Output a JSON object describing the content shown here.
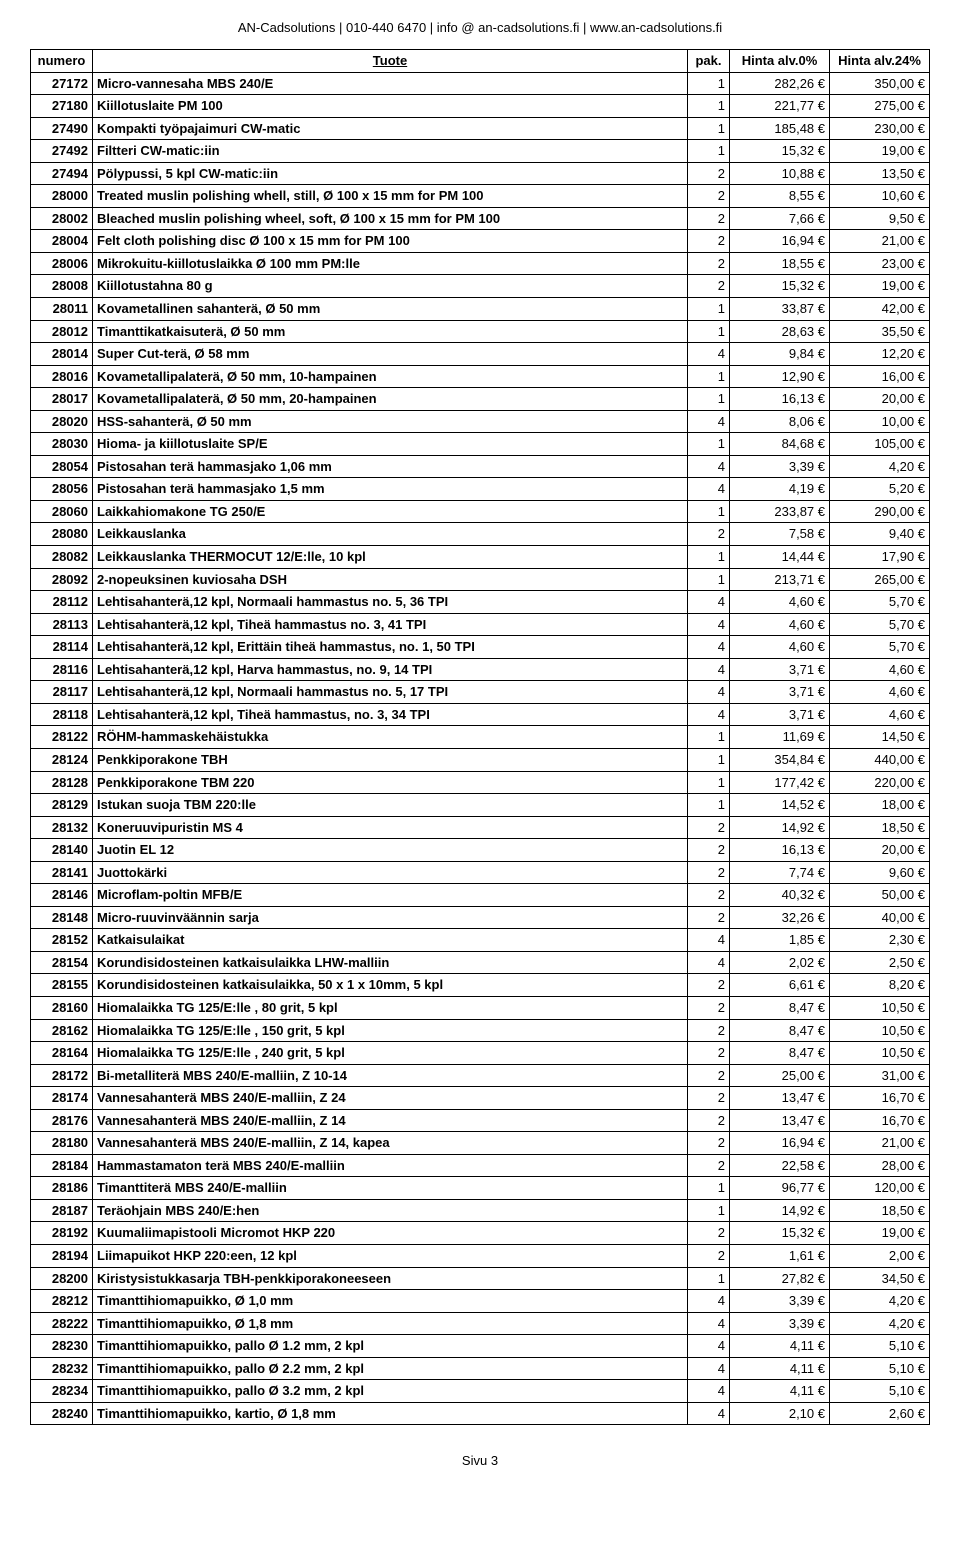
{
  "header": "AN-Cadsolutions | 010-440 6470 | info @ an-cadsolutions.fi | www.an-cadsolutions.fi",
  "footer": "Sivu 3",
  "table": {
    "columns": {
      "numero": "numero",
      "tuote": "Tuote",
      "pak": "pak.",
      "p0": "Hinta alv.0%",
      "p24": "Hinta alv.24%"
    },
    "rows": [
      {
        "n": "27172",
        "t": "Micro-vannesaha MBS 240/E",
        "p": "1",
        "a": "282,26 €",
        "b": "350,00 €"
      },
      {
        "n": "27180",
        "t": "Kiillotuslaite PM 100",
        "p": "1",
        "a": "221,77 €",
        "b": "275,00 €"
      },
      {
        "n": "27490",
        "t": "Kompakti työpajaimuri CW-matic",
        "p": "1",
        "a": "185,48 €",
        "b": "230,00 €"
      },
      {
        "n": "27492",
        "t": "Filtteri CW-matic:iin",
        "p": "1",
        "a": "15,32 €",
        "b": "19,00 €"
      },
      {
        "n": "27494",
        "t": "Pölypussi, 5 kpl CW-matic:iin",
        "p": "2",
        "a": "10,88 €",
        "b": "13,50 €"
      },
      {
        "n": "28000",
        "t": "Treated muslin polishing whell, still, Ø 100 x 15 mm for PM 100",
        "p": "2",
        "a": "8,55 €",
        "b": "10,60 €"
      },
      {
        "n": "28002",
        "t": "Bleached muslin polishing wheel, soft, Ø 100 x 15 mm for PM 100",
        "p": "2",
        "a": "7,66 €",
        "b": "9,50 €"
      },
      {
        "n": "28004",
        "t": "Felt cloth polishing disc Ø 100 x 15 mm for PM 100",
        "p": "2",
        "a": "16,94 €",
        "b": "21,00 €"
      },
      {
        "n": "28006",
        "t": "Mikrokuitu-kiillotuslaikka Ø 100 mm PM:lle",
        "p": "2",
        "a": "18,55 €",
        "b": "23,00 €"
      },
      {
        "n": "28008",
        "t": "Kiillotustahna 80 g",
        "p": "2",
        "a": "15,32 €",
        "b": "19,00 €"
      },
      {
        "n": "28011",
        "t": "Kovametallinen sahanterä, Ø 50 mm",
        "p": "1",
        "a": "33,87 €",
        "b": "42,00 €"
      },
      {
        "n": "28012",
        "t": "Timanttikatkaisuterä, Ø 50 mm",
        "p": "1",
        "a": "28,63 €",
        "b": "35,50 €"
      },
      {
        "n": "28014",
        "t": "Super Cut-terä, Ø 58 mm",
        "p": "4",
        "a": "9,84 €",
        "b": "12,20 €"
      },
      {
        "n": "28016",
        "t": "Kovametallipalaterä, Ø 50 mm, 10-hampainen",
        "p": "1",
        "a": "12,90 €",
        "b": "16,00 €"
      },
      {
        "n": "28017",
        "t": "Kovametallipalaterä, Ø 50 mm, 20-hampainen",
        "p": "1",
        "a": "16,13 €",
        "b": "20,00 €"
      },
      {
        "n": "28020",
        "t": "HSS-sahanterä, Ø 50 mm",
        "p": "4",
        "a": "8,06 €",
        "b": "10,00 €"
      },
      {
        "n": "28030",
        "t": "Hioma- ja kiillotuslaite SP/E",
        "p": "1",
        "a": "84,68 €",
        "b": "105,00 €"
      },
      {
        "n": "28054",
        "t": "Pistosahan terä hammasjako 1,06 mm",
        "p": "4",
        "a": "3,39 €",
        "b": "4,20 €"
      },
      {
        "n": "28056",
        "t": "Pistosahan terä hammasjako 1,5 mm",
        "p": "4",
        "a": "4,19 €",
        "b": "5,20 €"
      },
      {
        "n": "28060",
        "t": "Laikkahiomakone TG 250/E",
        "p": "1",
        "a": "233,87 €",
        "b": "290,00 €"
      },
      {
        "n": "28080",
        "t": "Leikkauslanka",
        "p": "2",
        "a": "7,58 €",
        "b": "9,40 €"
      },
      {
        "n": "28082",
        "t": "Leikkauslanka THERMOCUT 12/E:lle, 10 kpl",
        "p": "1",
        "a": "14,44 €",
        "b": "17,90 €"
      },
      {
        "n": "28092",
        "t": "2-nopeuksinen kuviosaha DSH",
        "p": "1",
        "a": "213,71 €",
        "b": "265,00 €"
      },
      {
        "n": "28112",
        "t": "Lehtisahanterä,12 kpl, Normaali hammastus no. 5, 36 TPI",
        "p": "4",
        "a": "4,60 €",
        "b": "5,70 €"
      },
      {
        "n": "28113",
        "t": "Lehtisahanterä,12 kpl, Tiheä hammastus no. 3, 41 TPI",
        "p": "4",
        "a": "4,60 €",
        "b": "5,70 €"
      },
      {
        "n": "28114",
        "t": "Lehtisahanterä,12 kpl, Erittäin tiheä hammastus, no. 1, 50 TPI",
        "p": "4",
        "a": "4,60 €",
        "b": "5,70 €"
      },
      {
        "n": "28116",
        "t": "Lehtisahanterä,12 kpl, Harva hammastus, no. 9, 14 TPI",
        "p": "4",
        "a": "3,71 €",
        "b": "4,60 €"
      },
      {
        "n": "28117",
        "t": "Lehtisahanterä,12 kpl, Normaali hammastus no. 5, 17 TPI",
        "p": "4",
        "a": "3,71 €",
        "b": "4,60 €"
      },
      {
        "n": "28118",
        "t": "Lehtisahanterä,12 kpl, Tiheä hammastus, no. 3, 34 TPI",
        "p": "4",
        "a": "3,71 €",
        "b": "4,60 €"
      },
      {
        "n": "28122",
        "t": "RÖHM-hammaskehäistukka",
        "p": "1",
        "a": "11,69 €",
        "b": "14,50 €"
      },
      {
        "n": "28124",
        "t": "Penkkiporakone TBH",
        "p": "1",
        "a": "354,84 €",
        "b": "440,00 €"
      },
      {
        "n": "28128",
        "t": "Penkkiporakone TBM 220",
        "p": "1",
        "a": "177,42 €",
        "b": "220,00 €"
      },
      {
        "n": "28129",
        "t": "Istukan suoja TBM 220:lle",
        "p": "1",
        "a": "14,52 €",
        "b": "18,00 €"
      },
      {
        "n": "28132",
        "t": "Koneruuvipuristin MS 4",
        "p": "2",
        "a": "14,92 €",
        "b": "18,50 €"
      },
      {
        "n": "28140",
        "t": "Juotin EL 12",
        "p": "2",
        "a": "16,13 €",
        "b": "20,00 €"
      },
      {
        "n": "28141",
        "t": "Juottokärki",
        "p": "2",
        "a": "7,74 €",
        "b": "9,60 €"
      },
      {
        "n": "28146",
        "t": "Microflam-poltin MFB/E",
        "p": "2",
        "a": "40,32 €",
        "b": "50,00 €"
      },
      {
        "n": "28148",
        "t": "Micro-ruuvinväännin sarja",
        "p": "2",
        "a": "32,26 €",
        "b": "40,00 €"
      },
      {
        "n": "28152",
        "t": "Katkaisulaikat",
        "p": "4",
        "a": "1,85 €",
        "b": "2,30 €"
      },
      {
        "n": "28154",
        "t": "Korundisidosteinen katkaisulaikka LHW-malliin",
        "p": "4",
        "a": "2,02 €",
        "b": "2,50 €"
      },
      {
        "n": "28155",
        "t": "Korundisidosteinen katkaisulaikka, 50 x 1 x 10mm, 5 kpl",
        "p": "2",
        "a": "6,61 €",
        "b": "8,20 €"
      },
      {
        "n": "28160",
        "t": "Hiomalaikka TG 125/E:lle , 80 grit, 5 kpl",
        "p": "2",
        "a": "8,47 €",
        "b": "10,50 €"
      },
      {
        "n": "28162",
        "t": "Hiomalaikka TG 125/E:lle , 150 grit, 5 kpl",
        "p": "2",
        "a": "8,47 €",
        "b": "10,50 €"
      },
      {
        "n": "28164",
        "t": "Hiomalaikka TG 125/E:lle , 240 grit, 5 kpl",
        "p": "2",
        "a": "8,47 €",
        "b": "10,50 €"
      },
      {
        "n": "28172",
        "t": "Bi-metalliterä MBS 240/E-malliin, Z 10-14",
        "p": "2",
        "a": "25,00 €",
        "b": "31,00 €"
      },
      {
        "n": "28174",
        "t": "Vannesahanterä MBS 240/E-malliin, Z 24",
        "p": "2",
        "a": "13,47 €",
        "b": "16,70 €"
      },
      {
        "n": "28176",
        "t": "Vannesahanterä MBS 240/E-malliin, Z 14",
        "p": "2",
        "a": "13,47 €",
        "b": "16,70 €"
      },
      {
        "n": "28180",
        "t": "Vannesahanterä MBS 240/E-malliin, Z 14, kapea",
        "p": "2",
        "a": "16,94 €",
        "b": "21,00 €"
      },
      {
        "n": "28184",
        "t": "Hammastamaton terä MBS 240/E-malliin",
        "p": "2",
        "a": "22,58 €",
        "b": "28,00 €"
      },
      {
        "n": "28186",
        "t": "Timanttiterä MBS 240/E-malliin",
        "p": "1",
        "a": "96,77 €",
        "b": "120,00 €"
      },
      {
        "n": "28187",
        "t": "Teräohjain MBS 240/E:hen",
        "p": "1",
        "a": "14,92 €",
        "b": "18,50 €"
      },
      {
        "n": "28192",
        "t": "Kuumaliimapistooli Micromot HKP 220",
        "p": "2",
        "a": "15,32 €",
        "b": "19,00 €"
      },
      {
        "n": "28194",
        "t": "Liimapuikot HKP 220:een, 12 kpl",
        "p": "2",
        "a": "1,61 €",
        "b": "2,00 €"
      },
      {
        "n": "28200",
        "t": "Kiristysistukkasarja TBH-penkkiporakoneeseen",
        "p": "1",
        "a": "27,82 €",
        "b": "34,50 €"
      },
      {
        "n": "28212",
        "t": "Timanttihiomapuikko, Ø 1,0 mm",
        "p": "4",
        "a": "3,39 €",
        "b": "4,20 €"
      },
      {
        "n": "28222",
        "t": "Timanttihiomapuikko, Ø 1,8 mm",
        "p": "4",
        "a": "3,39 €",
        "b": "4,20 €"
      },
      {
        "n": "28230",
        "t": "Timanttihiomapuikko, pallo Ø 1.2 mm, 2 kpl",
        "p": "4",
        "a": "4,11 €",
        "b": "5,10 €"
      },
      {
        "n": "28232",
        "t": "Timanttihiomapuikko, pallo Ø 2.2 mm, 2 kpl",
        "p": "4",
        "a": "4,11 €",
        "b": "5,10 €"
      },
      {
        "n": "28234",
        "t": "Timanttihiomapuikko, pallo Ø 3.2 mm, 2 kpl",
        "p": "4",
        "a": "4,11 €",
        "b": "5,10 €"
      },
      {
        "n": "28240",
        "t": "Timanttihiomapuikko, kartio, Ø 1,8 mm",
        "p": "4",
        "a": "2,10 €",
        "b": "2,60 €"
      }
    ]
  }
}
